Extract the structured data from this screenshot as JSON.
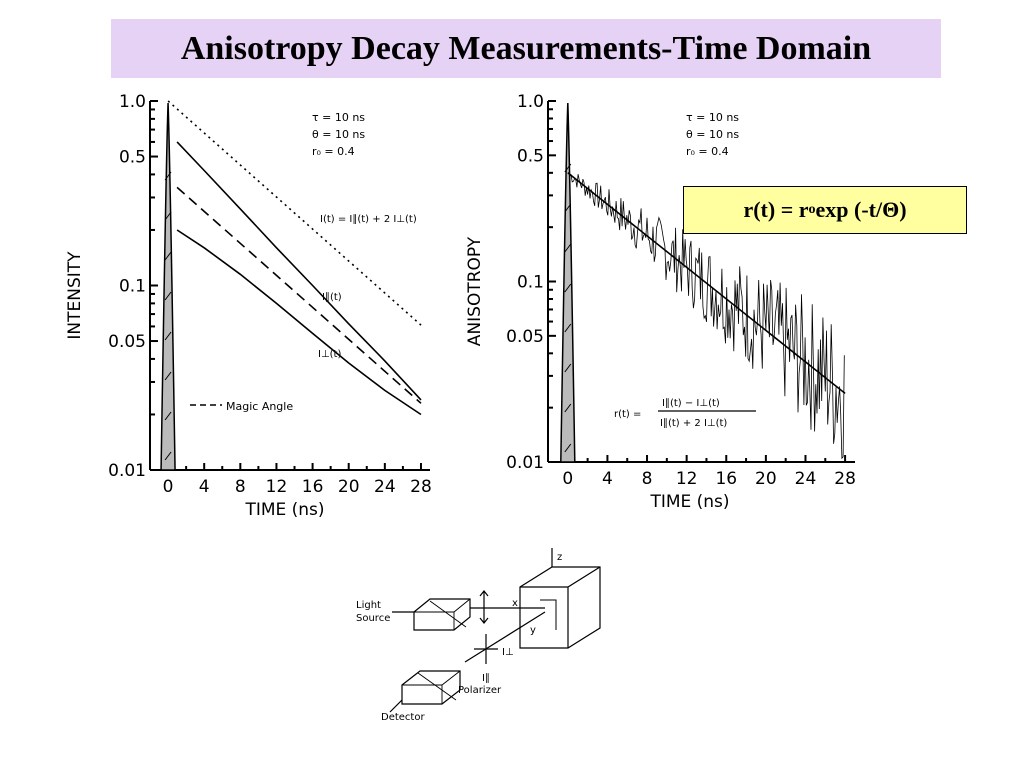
{
  "title": "Anisotropy Decay Measurements-Time Domain",
  "equation": {
    "lhs": "r(t)  = r",
    "sub": "o",
    "rhs": " exp (-t/Θ)"
  },
  "chart_data": [
    {
      "type": "line",
      "ylabel": "INTENSITY",
      "xlabel": "TIME (ns)",
      "yscale": "log",
      "ylim": [
        0.01,
        1.0
      ],
      "xlim": [
        -2,
        29
      ],
      "x_ticks": [
        "0",
        "4",
        "8",
        "12",
        "16",
        "20",
        "24",
        "28"
      ],
      "y_ticks": [
        "1.0",
        "0.5",
        "0.1",
        "0.05",
        "0.01"
      ],
      "params": [
        "τ = 10 ns",
        "θ = 10 ns",
        "r₀ = 0.4"
      ],
      "equation_label": "I(t) = I∥(t) + 2 I⊥(t)",
      "legend": "Magic Angle",
      "series": [
        {
          "name": "I(t) = I∥(t) + 2 I⊥(t)",
          "style": "dotted",
          "x": [
            0,
            28
          ],
          "y": [
            1.0,
            0.061
          ]
        },
        {
          "name": "I∥(t)",
          "style": "solid",
          "x": [
            1,
            4,
            8,
            12,
            16,
            20,
            24,
            28
          ],
          "y": [
            0.6,
            0.42,
            0.26,
            0.16,
            0.1,
            0.062,
            0.039,
            0.024
          ]
        },
        {
          "name": "Magic Angle",
          "style": "dashed",
          "x": [
            1,
            28
          ],
          "y": [
            0.34,
            0.023
          ]
        },
        {
          "name": "I⊥(t)",
          "style": "solid",
          "x": [
            1,
            4,
            8,
            12,
            16,
            20,
            24,
            28
          ],
          "y": [
            0.2,
            0.16,
            0.115,
            0.08,
            0.055,
            0.038,
            0.027,
            0.02
          ]
        }
      ]
    },
    {
      "type": "line",
      "ylabel": "ANISOTROPY",
      "xlabel": "TIME (ns)",
      "yscale": "log",
      "ylim": [
        0.01,
        1.0
      ],
      "xlim": [
        -2,
        29
      ],
      "x_ticks": [
        "0",
        "4",
        "8",
        "12",
        "16",
        "20",
        "24",
        "28"
      ],
      "y_ticks": [
        "1.0",
        "0.5",
        "0.1",
        "0.05",
        "0.01"
      ],
      "params": [
        "τ = 10 ns",
        "θ = 10 ns",
        "r₀ = 0.4"
      ],
      "formula_label": "r(t) =",
      "formula_num": "I∥(t) − I⊥(t)",
      "formula_den": "I∥(t) + 2 I⊥(t)",
      "series": [
        {
          "name": "r(t)",
          "style": "solid",
          "x": [
            0,
            28
          ],
          "y": [
            0.4,
            0.024
          ]
        }
      ]
    }
  ],
  "diagram": {
    "light_source": "Light Source",
    "detector": "Detector",
    "polarizer": "Polarizer",
    "axis_x": "x",
    "axis_y": "y",
    "axis_z": "z",
    "i_perp": "I⊥",
    "i_par": "I∥"
  }
}
